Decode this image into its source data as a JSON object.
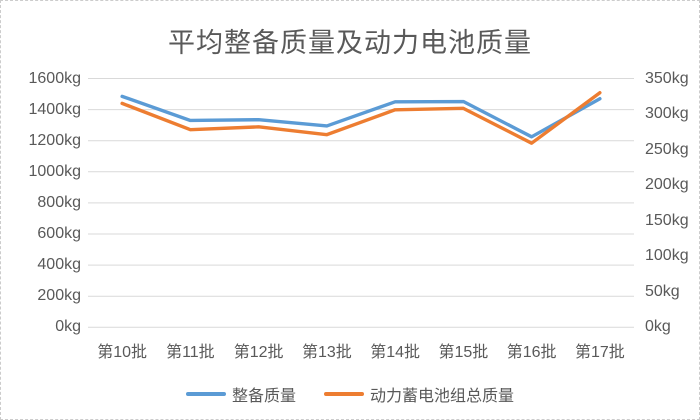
{
  "chart_data": {
    "type": "line",
    "title": "平均整备质量及动力电池质量",
    "categories": [
      "第10批",
      "第11批",
      "第12批",
      "第13批",
      "第14批",
      "第15批",
      "第16批",
      "第17批"
    ],
    "series": [
      {
        "name": "整备质量",
        "axis": "left",
        "color": "#5B9BD5",
        "values": [
          1485,
          1330,
          1335,
          1295,
          1450,
          1452,
          1225,
          1470
        ]
      },
      {
        "name": "动力蓄电池组总质量",
        "axis": "right",
        "color": "#ED7D31",
        "values": [
          315,
          278,
          282,
          271,
          306,
          308,
          259,
          330
        ]
      }
    ],
    "left_axis": {
      "min": 0,
      "max": 1600,
      "step": 200,
      "tick_labels": [
        "0kg",
        "200kg",
        "400kg",
        "600kg",
        "800kg",
        "1000kg",
        "1200kg",
        "1400kg",
        "1600kg"
      ]
    },
    "right_axis": {
      "min": 0,
      "max": 350,
      "step": 50,
      "tick_labels": [
        "0kg",
        "50kg",
        "100kg",
        "150kg",
        "200kg",
        "250kg",
        "300kg",
        "350kg"
      ]
    },
    "grid": true,
    "legend_position": "bottom",
    "text_color": "#595959",
    "gridline_color": "#D9D9D9",
    "background_color": "#FFFFFF"
  }
}
